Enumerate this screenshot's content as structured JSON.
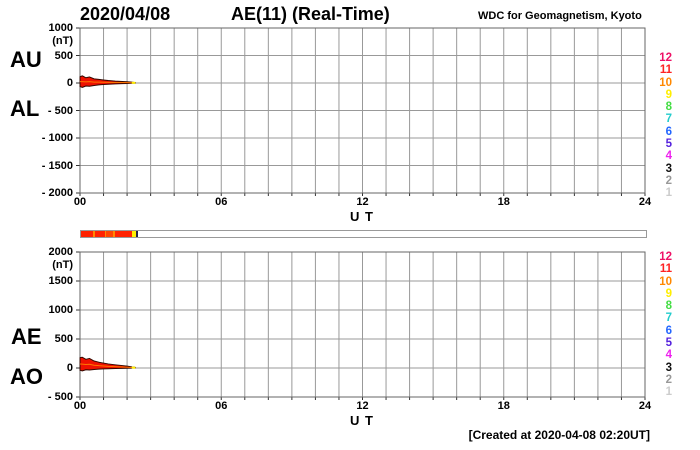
{
  "header": {
    "date": "2020/04/08",
    "title": "AE(11) (Real-Time)",
    "source": "WDC for Geomagnetism, Kyoto"
  },
  "footer": {
    "created": "[Created at 2020-04-08 02:20UT]"
  },
  "legend_stations": [
    {
      "label": "12",
      "color": "#ee1166"
    },
    {
      "label": "11",
      "color": "#ff2222"
    },
    {
      "label": "10",
      "color": "#ff8800"
    },
    {
      "label": "9",
      "color": "#ffee00"
    },
    {
      "label": "8",
      "color": "#44dd44"
    },
    {
      "label": "7",
      "color": "#22cccc"
    },
    {
      "label": "6",
      "color": "#2266ff"
    },
    {
      "label": "5",
      "color": "#5522dd"
    },
    {
      "label": "4",
      "color": "#ee22ee"
    },
    {
      "label": "3",
      "color": "#111111"
    },
    {
      "label": "2",
      "color": "#999999"
    },
    {
      "label": "1",
      "color": "#cccccc"
    }
  ],
  "availability_bar": {
    "units": "hours",
    "border_color": "#999999",
    "segments": [
      {
        "from": 0.0,
        "to": 0.5,
        "color": "#ff2200"
      },
      {
        "from": 0.5,
        "to": 0.58,
        "color": "#ff8800"
      },
      {
        "from": 0.58,
        "to": 1.0,
        "color": "#ff2200"
      },
      {
        "from": 1.0,
        "to": 1.08,
        "color": "#ff8800"
      },
      {
        "from": 1.08,
        "to": 1.38,
        "color": "#ff4400"
      },
      {
        "from": 1.38,
        "to": 1.46,
        "color": "#ff8800"
      },
      {
        "from": 1.46,
        "to": 2.15,
        "color": "#ff2200"
      },
      {
        "from": 2.15,
        "to": 2.32,
        "color": "#ffee00"
      },
      {
        "from": 2.32,
        "to": 2.42,
        "color": "#222244"
      }
    ]
  },
  "chart_data": [
    {
      "type": "area",
      "title": "AU / AL auroral electrojet indices",
      "left_labels": [
        "AU",
        "AL"
      ],
      "ylabel": "(nT)",
      "ylim": [
        -2000,
        1000
      ],
      "y_step": 500,
      "yticks": [
        "1000",
        "500",
        "0",
        "- 500",
        "- 1000",
        "- 1500",
        "- 2000"
      ],
      "xlim": [
        0,
        24
      ],
      "x_step": 1,
      "xticks": [
        "00",
        "06",
        "12",
        "18",
        "24"
      ],
      "xtick_hours": [
        0,
        6,
        12,
        18,
        24
      ],
      "xlabel": "U T",
      "grid_color": "#999999",
      "band_fill": "#ee1100",
      "band_stroke": "#330800",
      "inner_color": "#ff7700",
      "tip_color": "#ffee00",
      "series": [
        {
          "name": "AU",
          "x": [
            0,
            0.1,
            0.25,
            0.4,
            0.6,
            0.8,
            1.0,
            1.2,
            1.5,
            1.8,
            2.0,
            2.2,
            2.35
          ],
          "values": [
            115,
            130,
            95,
            110,
            75,
            65,
            55,
            45,
            35,
            28,
            22,
            15,
            8
          ]
        },
        {
          "name": "AL",
          "x": [
            0,
            0.1,
            0.25,
            0.4,
            0.6,
            0.8,
            1.0,
            1.2,
            1.5,
            1.8,
            2.0,
            2.2,
            2.35
          ],
          "values": [
            -65,
            -80,
            -55,
            -60,
            -45,
            -35,
            -28,
            -22,
            -16,
            -12,
            -8,
            -5,
            -2
          ]
        }
      ]
    },
    {
      "type": "area",
      "title": "AE / AO auroral electrojet indices",
      "left_labels": [
        "AE",
        "AO"
      ],
      "ylabel": "(nT)",
      "ylim": [
        -500,
        2000
      ],
      "y_step": 500,
      "yticks": [
        "2000",
        "1500",
        "1000",
        "500",
        "0",
        "- 500"
      ],
      "xlim": [
        0,
        24
      ],
      "x_step": 1,
      "xticks": [
        "00",
        "06",
        "12",
        "18",
        "24"
      ],
      "xtick_hours": [
        0,
        6,
        12,
        18,
        24
      ],
      "xlabel": "U T",
      "grid_color": "#999999",
      "band_fill": "#ee1100",
      "band_stroke": "#330800",
      "inner_color": "#ff7700",
      "tip_color": "#ffee00",
      "series": [
        {
          "name": "AE",
          "x": [
            0,
            0.1,
            0.25,
            0.4,
            0.6,
            0.8,
            1.0,
            1.2,
            1.5,
            1.8,
            2.0,
            2.2,
            2.35
          ],
          "values": [
            180,
            185,
            150,
            165,
            120,
            100,
            85,
            70,
            55,
            42,
            32,
            20,
            10
          ]
        },
        {
          "name": "AO",
          "x": [
            0,
            0.1,
            0.25,
            0.4,
            0.6,
            0.8,
            1.0,
            1.2,
            1.5,
            1.8,
            2.0,
            2.2,
            2.35
          ],
          "values": [
            -40,
            -50,
            -30,
            -35,
            -25,
            -20,
            -15,
            -12,
            -8,
            -6,
            -4,
            -2,
            0
          ]
        }
      ]
    }
  ]
}
